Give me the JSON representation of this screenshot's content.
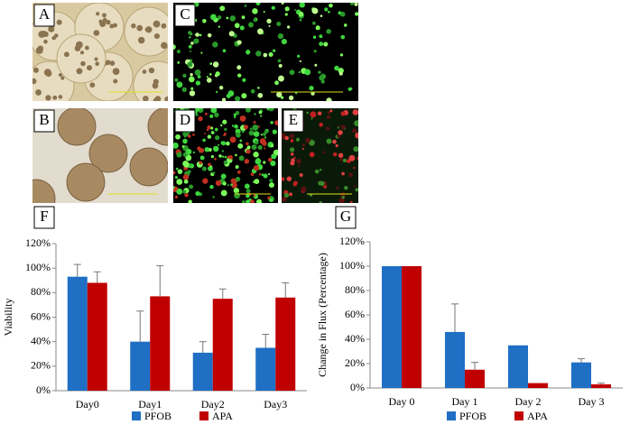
{
  "panels": [
    "A",
    "B",
    "C",
    "D",
    "E"
  ],
  "chart_data": [
    {
      "type": "bar",
      "panel_label": "F",
      "ylabel": "Viability",
      "categories": [
        "Day0",
        "Day1",
        "Day2",
        "Day3"
      ],
      "series": [
        {
          "name": "PFOB",
          "color": "#1f6fc4",
          "values": [
            93,
            40,
            31,
            35
          ],
          "errors": [
            10,
            25,
            9,
            11
          ]
        },
        {
          "name": "APA",
          "color": "#c00000",
          "values": [
            88,
            77,
            75,
            76
          ],
          "errors": [
            9,
            25,
            8,
            12
          ]
        }
      ],
      "ylim": [
        0,
        120
      ],
      "yticks": [
        {
          "value": 0,
          "label": "0%"
        },
        {
          "value": 20,
          "label": "20%"
        },
        {
          "value": 40,
          "label": "40%"
        },
        {
          "value": 60,
          "label": "60%"
        },
        {
          "value": 80,
          "label": "80%"
        },
        {
          "value": 100,
          "label": "100%"
        },
        {
          "value": 120,
          "label": "120%"
        }
      ],
      "legend": "bottom"
    },
    {
      "type": "bar",
      "panel_label": "G",
      "ylabel": "Change in Flux (Percentage)",
      "categories": [
        "Day 0",
        "Day 1",
        "Day 2",
        "Day 3"
      ],
      "series": [
        {
          "name": "PFOB",
          "color": "#1f6fc4",
          "values": [
            100,
            46,
            35,
            21
          ],
          "errors": [
            null,
            23,
            null,
            3
          ]
        },
        {
          "name": "APA",
          "color": "#c00000",
          "values": [
            100,
            15,
            4,
            3
          ],
          "errors": [
            null,
            6,
            null,
            1
          ]
        }
      ],
      "ylim": [
        0,
        120
      ],
      "yticks": [
        {
          "value": 0,
          "label": "0%"
        },
        {
          "value": 20,
          "label": "20%"
        },
        {
          "value": 40,
          "label": "40%"
        },
        {
          "value": 60,
          "label": "60%"
        },
        {
          "value": 80,
          "label": "80%"
        },
        {
          "value": 100,
          "label": "100%"
        },
        {
          "value": 120,
          "label": "120%"
        }
      ],
      "legend": "bottom"
    }
  ]
}
